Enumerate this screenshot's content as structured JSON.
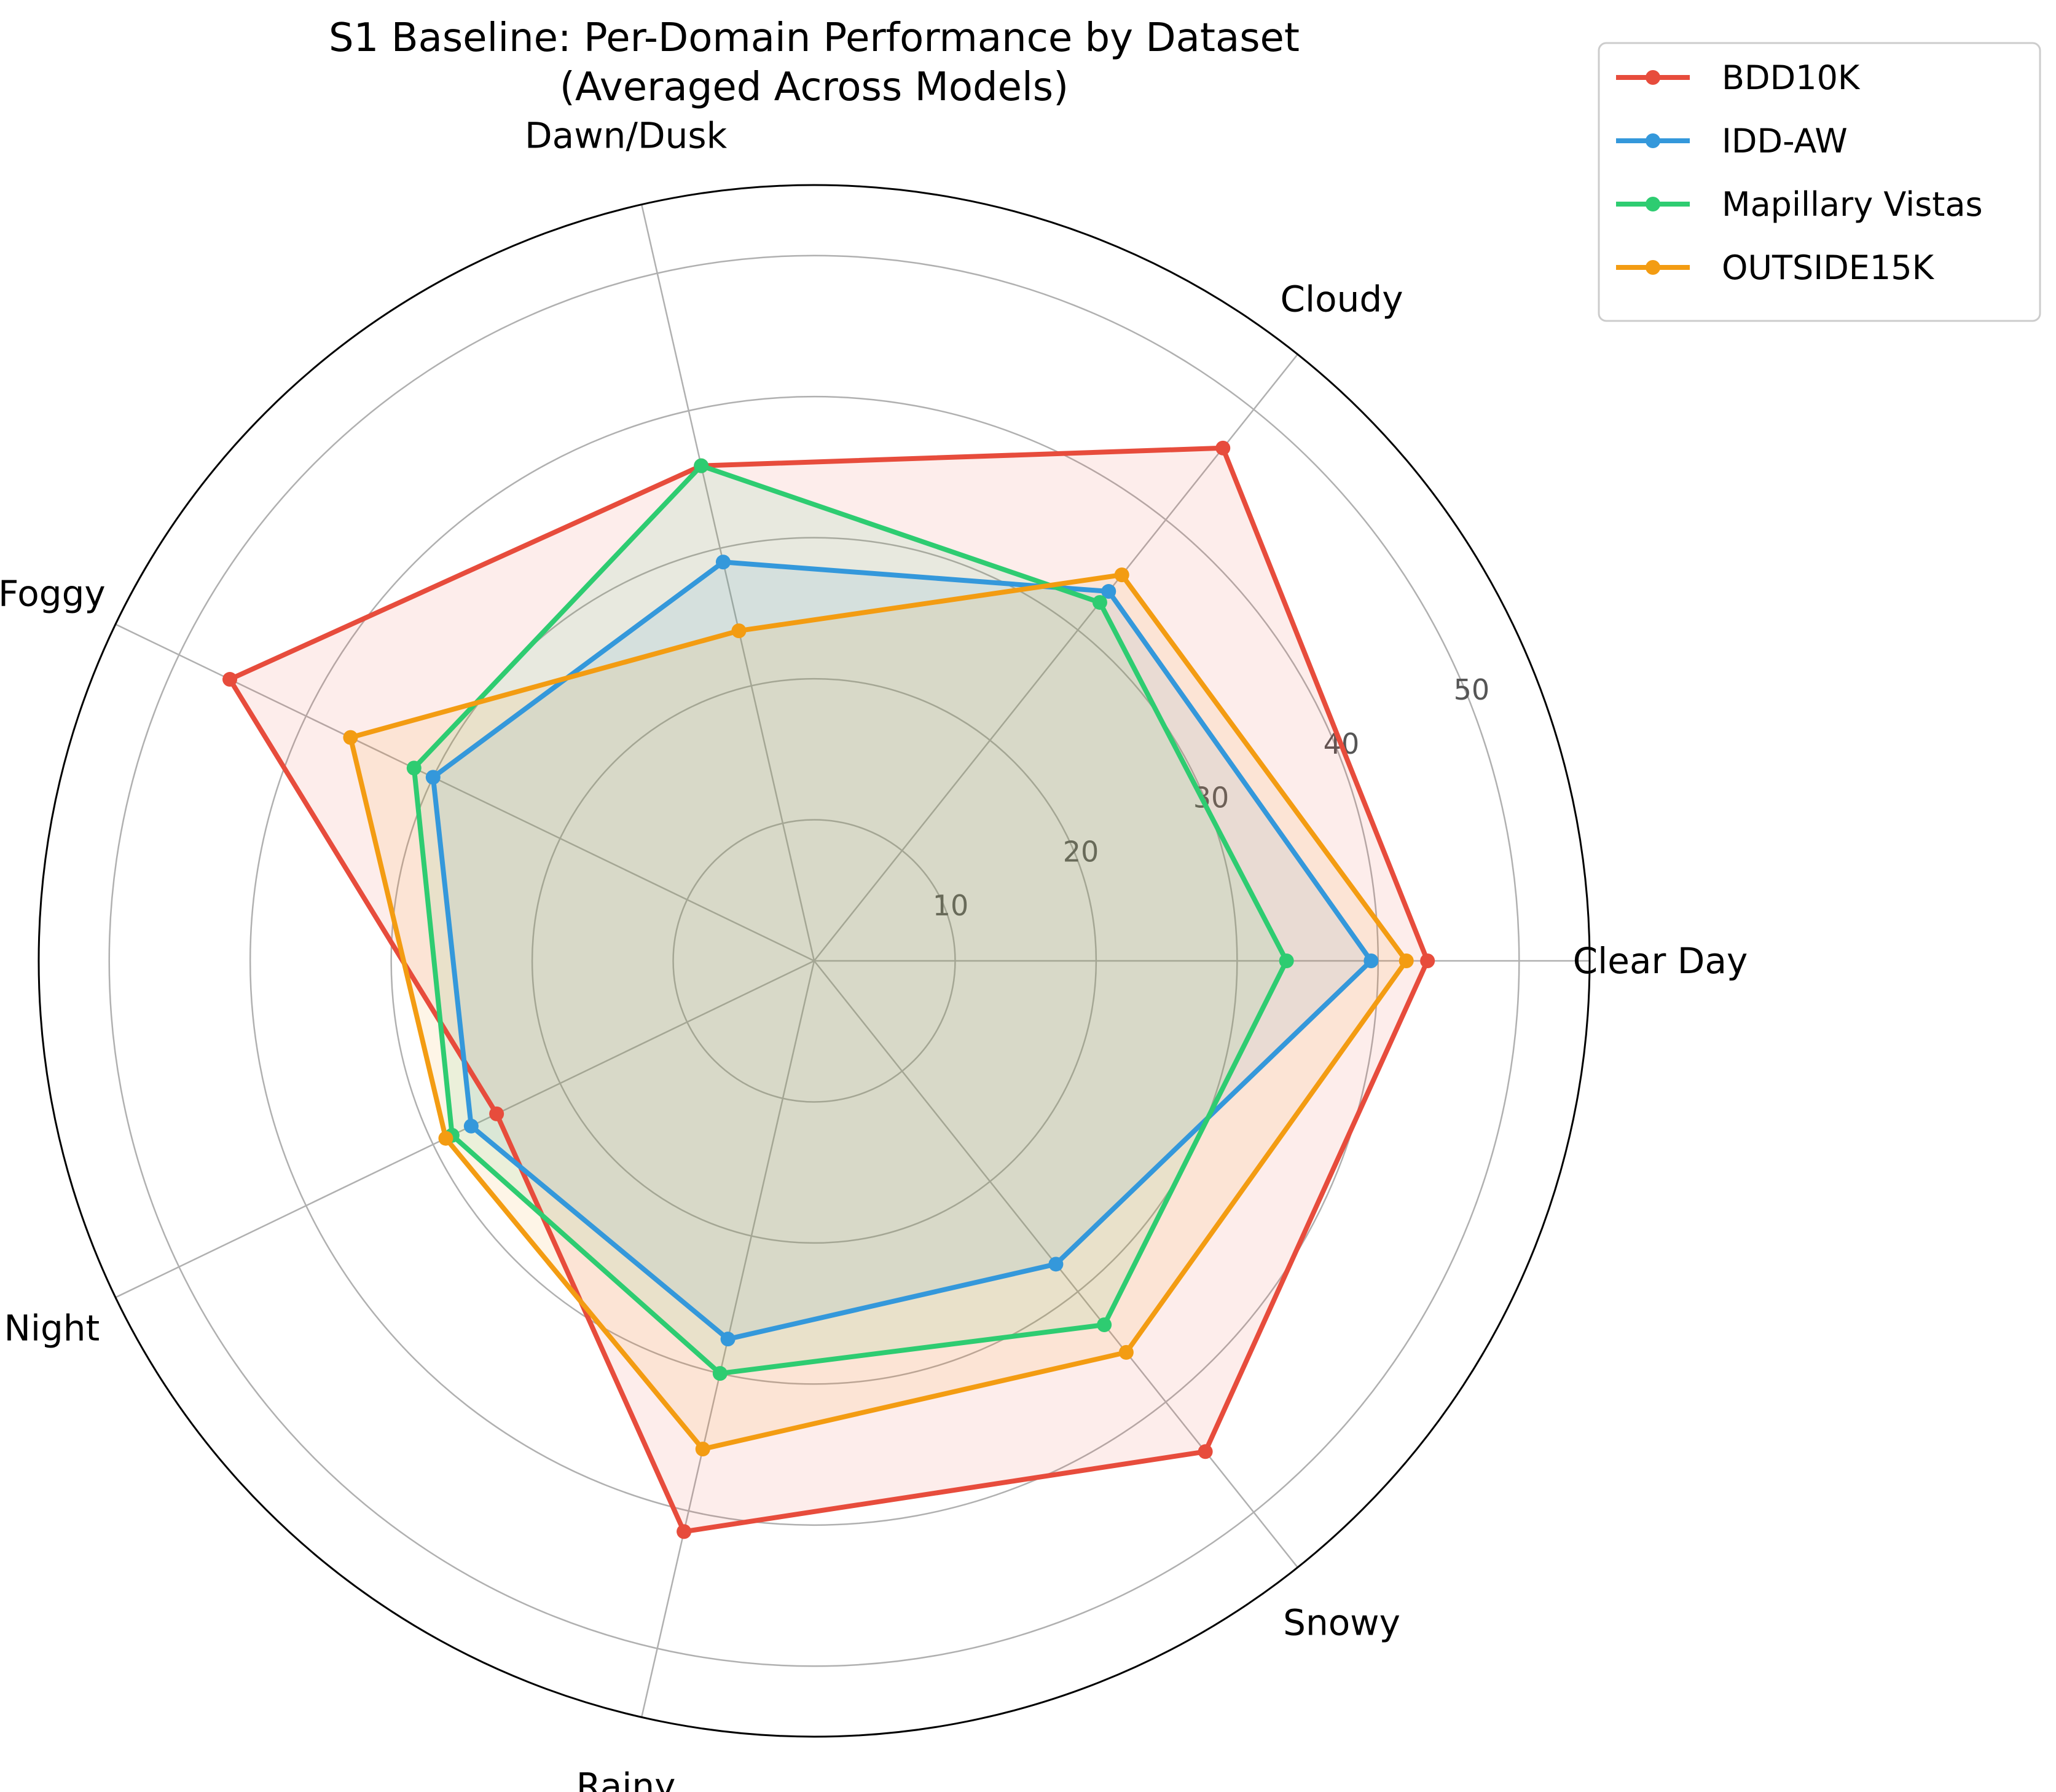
{
  "chart_data": {
    "type": "radar",
    "title_lines": [
      "S1 Baseline: Per-Domain Performance by Dataset",
      "(Averaged Across Models)"
    ],
    "categories": [
      "Clear Day",
      "Cloudy",
      "Dawn/Dusk",
      "Foggy",
      "Night",
      "Rainy",
      "Snowy"
    ],
    "rlim": [
      0,
      55
    ],
    "radial_ticks": [
      10,
      20,
      30,
      40,
      50
    ],
    "grid": true,
    "legend_position": "outside-top-right",
    "series": [
      {
        "name": "BDD10K",
        "color": "#e74c3c",
        "values": [
          43.5,
          46.5,
          36.0,
          46.0,
          25.0,
          41.5,
          44.5
        ]
      },
      {
        "name": "IDD-AW",
        "color": "#3498db",
        "values": [
          39.5,
          33.5,
          29.0,
          30.0,
          27.0,
          27.5,
          27.5
        ]
      },
      {
        "name": "Mapillary Vistas",
        "color": "#2ecc71",
        "values": [
          33.5,
          32.5,
          36.0,
          31.5,
          28.5,
          30.0,
          33.0
        ]
      },
      {
        "name": "OUTSIDE15K",
        "color": "#f39c12",
        "values": [
          42.0,
          35.0,
          24.0,
          36.5,
          29.0,
          35.5,
          35.5
        ]
      }
    ]
  }
}
